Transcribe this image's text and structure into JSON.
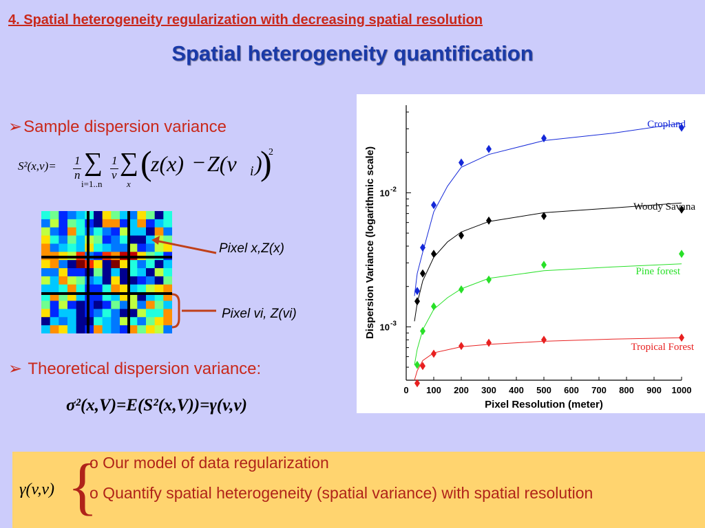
{
  "header": {
    "section_title": "4. Spatial heterogeneity regularization with decreasing spatial resolution",
    "main_title": "Spatial heterogeneity quantification"
  },
  "left": {
    "bullet1": "Sample dispersion variance",
    "bullet2": "Theoretical dispersion variance:",
    "annotation_pixel_x": "Pixel x,Z(x)",
    "annotation_pixel_vi": "Pixel vi, Z(vi)",
    "formula1": {
      "lhs": "S²(x,v)=",
      "frac1_num": "1",
      "frac1_den": "n",
      "sum1_sub": "i=1..n",
      "frac2_num": "1",
      "frac2_den": "v",
      "sum2_sub": "x",
      "body_a": "z(x)",
      "minus": "−",
      "body_b": "Z(v",
      "body_i": "i",
      "body_c": ")",
      "power": "2"
    },
    "formula2": "σ²(x,V)=E(S²(x,V))=γ(v,v)"
  },
  "bottom_box": {
    "gamma": "γ(v,v)",
    "line1": "o Our model of data regularization",
    "line2": "o Quantify spatial heterogeneity (spatial variance) with spatial resolution"
  },
  "grid_image": {
    "colors": [
      "#00008f",
      "#0028ff",
      "#0078ff",
      "#00c8ff",
      "#20ffdf",
      "#70ff8f",
      "#c0ff40",
      "#ffe000",
      "#ff9000",
      "#ff3000",
      "#c00000",
      "#800000"
    ]
  },
  "chart_data": {
    "type": "scatter",
    "xlabel": "Pixel Resolution (meter)",
    "ylabel": "Dispersion Variance (logarithmic scale)",
    "xlim": [
      0,
      1000
    ],
    "ylim": [
      0.0004,
      0.045
    ],
    "yscale": "log",
    "xticks": [
      "0",
      "100",
      "200",
      "300",
      "400",
      "500",
      "600",
      "700",
      "800",
      "900",
      "1000"
    ],
    "yticks": [
      {
        "value": 0.01,
        "base": "10",
        "exp": "-2"
      },
      {
        "value": 0.001,
        "base": "10",
        "exp": "-3"
      }
    ],
    "grid": false,
    "series": [
      {
        "name": "Cropland",
        "color": "#1428d8",
        "x": [
          40,
          60,
          100,
          200,
          300,
          500,
          1000
        ],
        "y": [
          0.00185,
          0.0039,
          0.0081,
          0.0168,
          0.0212,
          0.0255,
          0.0306
        ],
        "fit": [
          [
            30,
            0.0017
          ],
          [
            40,
            0.0025
          ],
          [
            60,
            0.0036
          ],
          [
            100,
            0.0072
          ],
          [
            150,
            0.0112
          ],
          [
            200,
            0.0155
          ],
          [
            300,
            0.0193
          ],
          [
            500,
            0.0245
          ],
          [
            750,
            0.0278
          ],
          [
            1000,
            0.033
          ]
        ]
      },
      {
        "name": "Woody Savana",
        "color": "#000000",
        "x": [
          40,
          60,
          100,
          200,
          300,
          500,
          1000
        ],
        "y": [
          0.00155,
          0.0025,
          0.0035,
          0.0048,
          0.0062,
          0.0067,
          0.0075
        ],
        "fit": [
          [
            30,
            0.0011
          ],
          [
            40,
            0.0015
          ],
          [
            60,
            0.0022
          ],
          [
            100,
            0.0033
          ],
          [
            150,
            0.0043
          ],
          [
            200,
            0.0051
          ],
          [
            300,
            0.0061
          ],
          [
            500,
            0.0071
          ],
          [
            750,
            0.0077
          ],
          [
            1000,
            0.0084
          ]
        ]
      },
      {
        "name": "Pine forest",
        "color": "#28e028",
        "x": [
          40,
          60,
          100,
          200,
          300,
          500,
          1000
        ],
        "y": [
          0.00052,
          0.00093,
          0.00142,
          0.0019,
          0.00225,
          0.0029,
          0.0035
        ],
        "fit": [
          [
            30,
            0.00052
          ],
          [
            40,
            0.00068
          ],
          [
            60,
            0.00095
          ],
          [
            100,
            0.00135
          ],
          [
            150,
            0.00165
          ],
          [
            200,
            0.00192
          ],
          [
            300,
            0.0023
          ],
          [
            500,
            0.00262
          ],
          [
            750,
            0.0028
          ],
          [
            1000,
            0.00295
          ]
        ]
      },
      {
        "name": "Tropical Forest",
        "color": "#e82020",
        "x": [
          40,
          60,
          100,
          200,
          300,
          500,
          1000
        ],
        "y": [
          0.00038,
          0.00051,
          0.00063,
          0.00072,
          0.00076,
          0.0008,
          0.00083
        ],
        "fit": [
          [
            30,
            0.0004
          ],
          [
            40,
            0.00047
          ],
          [
            60,
            0.00056
          ],
          [
            100,
            0.00064
          ],
          [
            200,
            0.00071
          ],
          [
            300,
            0.00074
          ],
          [
            500,
            0.00078
          ],
          [
            750,
            0.00081
          ],
          [
            1000,
            0.00083
          ]
        ]
      }
    ]
  }
}
